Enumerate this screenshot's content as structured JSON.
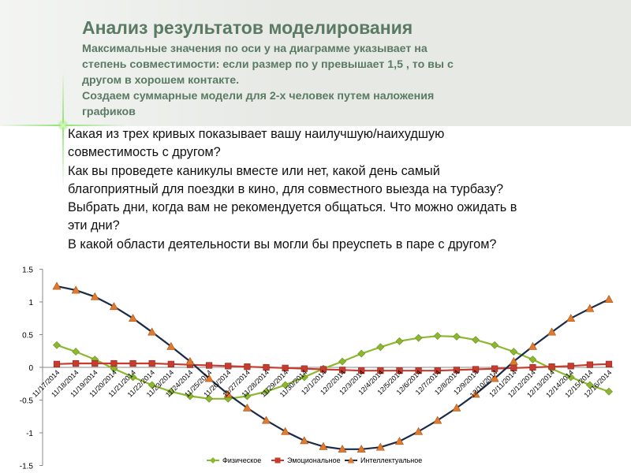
{
  "slide": {
    "title": "Анализ результатов моделирования",
    "subtitle": [
      "Максимальные значения по оси у на диаграмме указывает на",
      "степень совместимости: если размер по у превышает 1,5 , то вы с",
      "другом в хорошем контакте.",
      "Создаем суммарные модели для 2-х человек путем наложения",
      "графиков"
    ],
    "questions": [
      "Какая из трех кривых показывает вашу наилучшую/наихудшую",
      "совместимость с другом?",
      " Как вы проведете каникулы вместе или нет, какой день самый",
      "благоприятный для поездки в кино, для совместного выезда на турбазу?",
      " Выбрать дни, когда вам не рекомендуется общаться. Что можно ожидать в",
      "эти дни?",
      " В какой области деятельности вы могли бы преуспеть в паре с другом?"
    ]
  },
  "chart_data": {
    "type": "line",
    "title": "",
    "xlabel": "",
    "ylabel": "",
    "ylim": [
      -1.5,
      1.5
    ],
    "y_ticks": [
      "1.5",
      "1",
      "0.5",
      "0",
      "-0.5",
      "-1",
      "-1.5"
    ],
    "grid": false,
    "legend_position": "bottom",
    "x": [
      "11/17/2014",
      "11/18/2014",
      "11/19/2014",
      "11/20/2014",
      "11/21/2014",
      "11/22/2014",
      "11/23/2014",
      "11/24/2014",
      "11/25/2014",
      "11/26/2014",
      "11/27/2014",
      "11/28/2014",
      "11/29/2014",
      "11/30/2014",
      "12/1/2014",
      "12/2/2014",
      "12/3/2014",
      "12/4/2014",
      "12/5/2014",
      "12/6/2014",
      "12/7/2014",
      "12/8/2014",
      "12/9/2014",
      "12/10/2014",
      "12/11/2014",
      "12/12/2014",
      "12/13/2014",
      "12/14/2014",
      "12/15/2014",
      "12/16/2014"
    ],
    "series": [
      {
        "name": "Физическое",
        "color": "#8cb830",
        "marker": "diamond",
        "values": [
          0.34,
          0.24,
          0.12,
          -0.02,
          -0.15,
          -0.27,
          -0.37,
          -0.44,
          -0.48,
          -0.48,
          -0.44,
          -0.37,
          -0.27,
          -0.15,
          -0.02,
          0.09,
          0.21,
          0.31,
          0.4,
          0.45,
          0.48,
          0.47,
          0.42,
          0.34,
          0.24,
          0.12,
          -0.02,
          -0.15,
          -0.27,
          -0.37
        ]
      },
      {
        "name": "Эмоциональное",
        "color": "#c83c30",
        "marker": "square",
        "values": [
          0.05,
          0.06,
          0.06,
          0.06,
          0.06,
          0.06,
          0.05,
          0.04,
          0.03,
          0.02,
          0.01,
          0.0,
          -0.01,
          -0.02,
          -0.03,
          -0.04,
          -0.05,
          -0.05,
          -0.05,
          -0.05,
          -0.05,
          -0.04,
          -0.03,
          -0.02,
          -0.01,
          0.0,
          0.01,
          0.02,
          0.04,
          0.05
        ]
      },
      {
        "name": "Интеллектуальное",
        "color": "#1a2a48",
        "marker_color": "#e07a30",
        "marker": "triangle",
        "values": [
          1.24,
          1.18,
          1.08,
          0.93,
          0.75,
          0.54,
          0.32,
          0.09,
          -0.17,
          -0.41,
          -0.62,
          -0.81,
          -0.98,
          -1.12,
          -1.21,
          -1.25,
          -1.25,
          -1.22,
          -1.13,
          -0.98,
          -0.81,
          -0.62,
          -0.41,
          -0.17,
          0.09,
          0.32,
          0.54,
          0.75,
          0.9,
          1.04
        ]
      }
    ]
  }
}
